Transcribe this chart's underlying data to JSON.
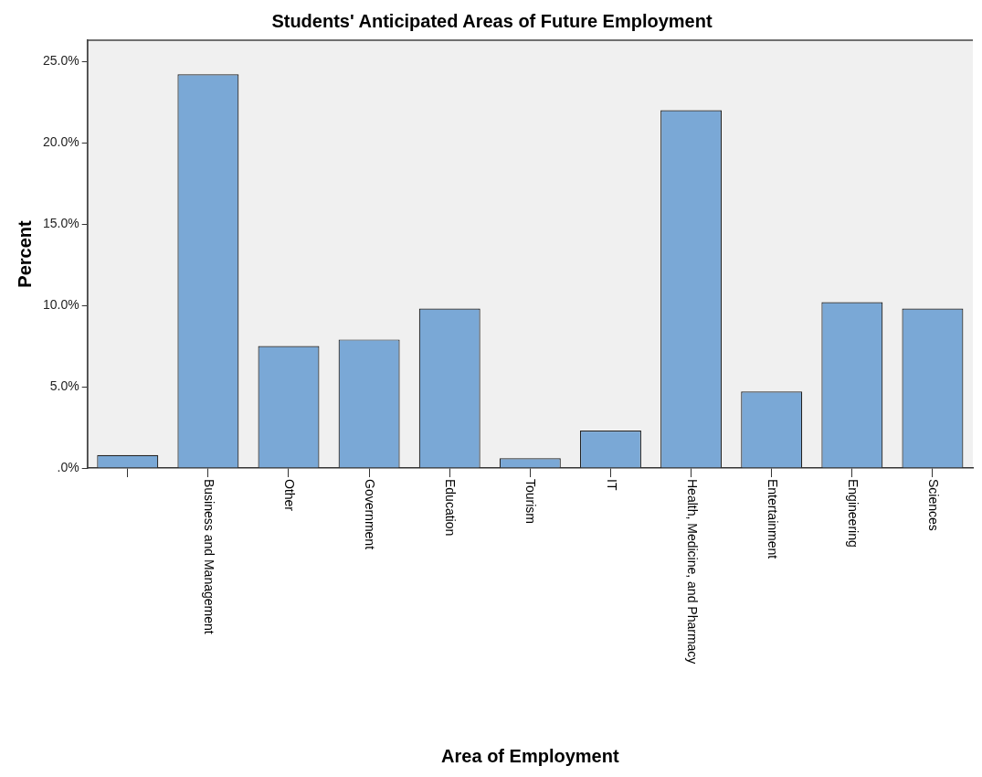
{
  "chart_data": {
    "type": "bar",
    "title": "Students' Anticipated Areas of Future Employment",
    "xlabel": "Area of Employment",
    "ylabel": "Percent",
    "categories": [
      null,
      "Business and Management",
      "Other",
      "Government",
      "Education",
      "Tourism",
      "IT",
      "Health, Medicine, and Pharmacy",
      "Entertainment",
      "Engineering",
      "Sciences"
    ],
    "values": [
      0.8,
      24.2,
      7.5,
      7.9,
      9.8,
      0.6,
      2.3,
      22.0,
      4.7,
      10.2,
      9.8
    ],
    "color": "#7aa8d6",
    "ylim": [
      0,
      26.3
    ],
    "yticks": [
      {
        "value": 0,
        "label": ".0%"
      },
      {
        "value": 5,
        "label": "5.0%"
      },
      {
        "value": 10,
        "label": "10.0%"
      },
      {
        "value": 15,
        "label": "15.0%"
      },
      {
        "value": 20,
        "label": "20.0%"
      },
      {
        "value": 25,
        "label": "25.0%"
      }
    ]
  }
}
